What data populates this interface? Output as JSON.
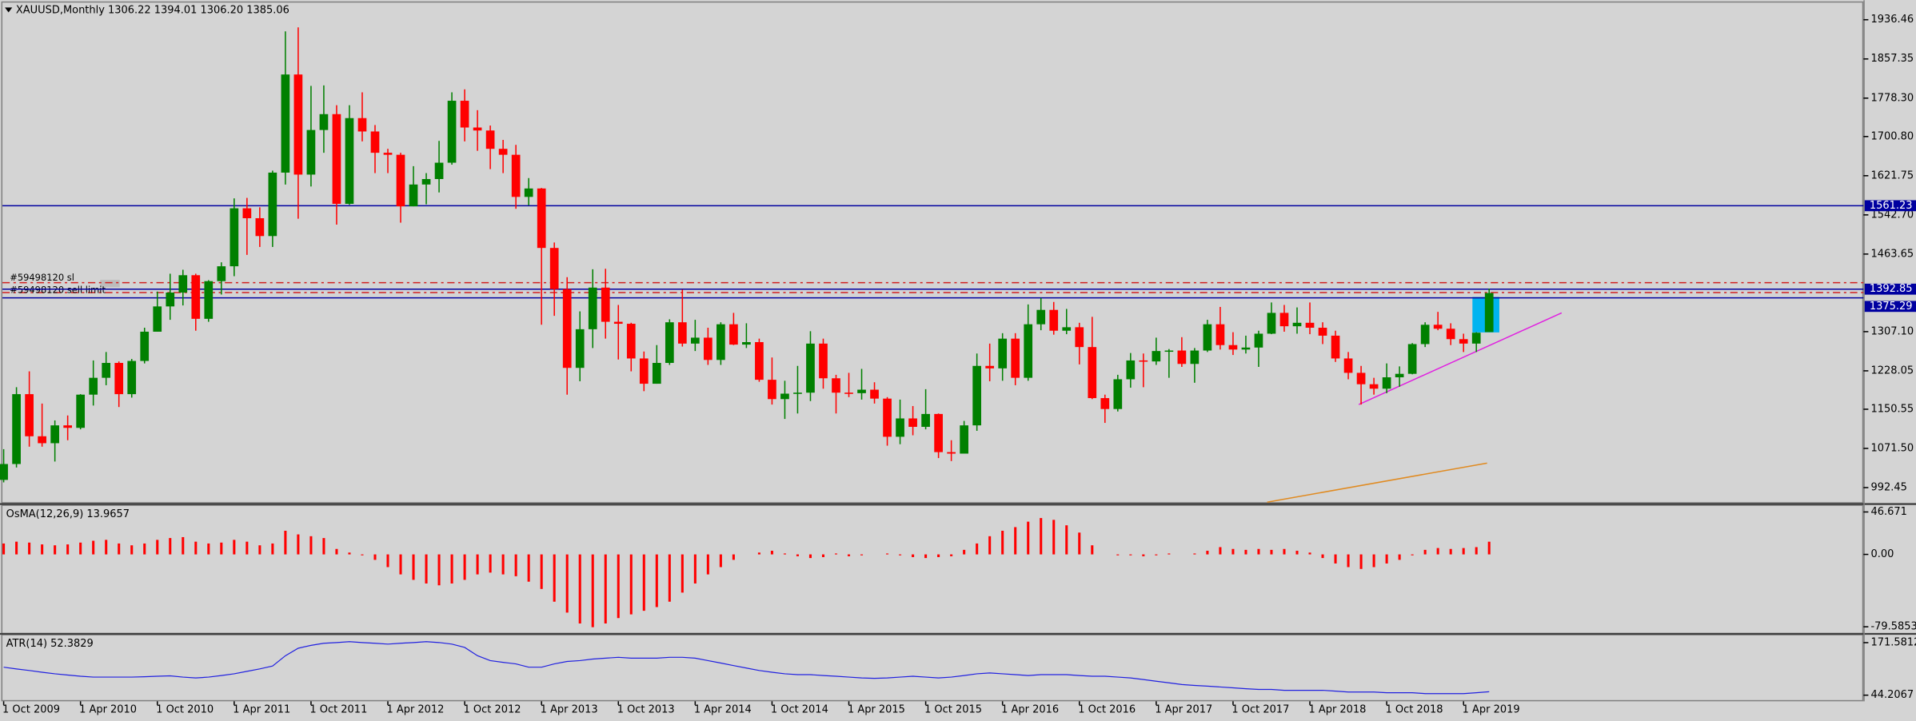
{
  "chart_data": [
    {
      "type": "candlestick",
      "title": "XAUUSD,Monthly  1306.22 1394.01 1306.20 1385.06",
      "up_color": "#008000",
      "down_color": "#ff0000",
      "ylim": [
        963,
        1971
      ],
      "yticks": [
        1936.46,
        1857.35,
        {
          "value": 1778.3,
          "label": "1778.30"
        },
        {
          "value": 1700.8,
          "label": "1700.80"
        },
        1621.75,
        {
          "value": 1542.7,
          "label": "1542.70"
        },
        1463.65,
        {
          "value": 1307.1,
          "label": "1307.10"
        },
        1228.05,
        1150.55,
        {
          "value": 1071.5,
          "label": "1071.50"
        },
        992.45
      ],
      "levels": [
        1561.23,
        1392.85,
        1375.29
      ],
      "level_color": "#0000a0",
      "orders": [
        {
          "label": "#59498120 sl",
          "value": 1406
        },
        {
          "label": "#59498120 sell limit",
          "value": 1386
        }
      ],
      "categories": [
        "1 Oct 2009",
        null,
        null,
        null,
        null,
        null,
        "1 Apr 2010",
        null,
        null,
        null,
        null,
        null,
        "1 Oct 2010",
        null,
        null,
        null,
        null,
        null,
        "1 Apr 2011",
        null,
        null,
        null,
        null,
        null,
        "1 Oct 2011",
        null,
        null,
        null,
        null,
        null,
        "1 Apr 2012",
        null,
        null,
        null,
        null,
        null,
        "1 Oct 2012",
        null,
        null,
        null,
        null,
        null,
        "1 Apr 2013",
        null,
        null,
        null,
        null,
        null,
        "1 Oct 2013",
        null,
        null,
        null,
        null,
        null,
        "1 Apr 2014",
        null,
        null,
        null,
        null,
        null,
        "1 Oct 2014",
        null,
        null,
        null,
        null,
        null,
        "1 Apr 2015",
        null,
        null,
        null,
        null,
        null,
        "1 Oct 2015",
        null,
        null,
        null,
        null,
        null,
        "1 Apr 2016",
        null,
        null,
        null,
        null,
        null,
        "1 Oct 2016",
        null,
        null,
        null,
        null,
        null,
        "1 Apr 2017",
        null,
        null,
        null,
        null,
        null,
        "1 Oct 2017",
        null,
        null,
        null,
        null,
        null,
        "1 Apr 2018",
        null,
        null,
        null,
        null,
        null,
        "1 Oct 2018",
        null,
        null,
        null,
        null,
        null,
        "1 Apr 2019",
        null,
        null
      ],
      "ohlc": [
        [
          1008,
          1070,
          1003,
          1040
        ],
        [
          1040,
          1195,
          1033,
          1181
        ],
        [
          1181,
          1227,
          1075,
          1096
        ],
        [
          1096,
          1162,
          1075,
          1082
        ],
        [
          1082,
          1128,
          1045,
          1118
        ],
        [
          1118,
          1138,
          1088,
          1113
        ],
        [
          1113,
          1181,
          1110,
          1180
        ],
        [
          1180,
          1249,
          1158,
          1214
        ],
        [
          1214,
          1266,
          1199,
          1244
        ],
        [
          1244,
          1247,
          1155,
          1181
        ],
        [
          1181,
          1252,
          1174,
          1248
        ],
        [
          1248,
          1315,
          1243,
          1307
        ],
        [
          1307,
          1388,
          1307,
          1358
        ],
        [
          1358,
          1424,
          1331,
          1386
        ],
        [
          1386,
          1432,
          1360,
          1421
        ],
        [
          1421,
          1424,
          1309,
          1333
        ],
        [
          1333,
          1411,
          1327,
          1409
        ],
        [
          1409,
          1447,
          1382,
          1439
        ],
        [
          1439,
          1576,
          1419,
          1556
        ],
        [
          1556,
          1577,
          1462,
          1536
        ],
        [
          1536,
          1558,
          1478,
          1500
        ],
        [
          1500,
          1632,
          1478,
          1628
        ],
        [
          1628,
          1913,
          1604,
          1826
        ],
        [
          1826,
          1921,
          1535,
          1624
        ],
        [
          1624,
          1803,
          1600,
          1714
        ],
        [
          1714,
          1804,
          1668,
          1746
        ],
        [
          1746,
          1764,
          1523,
          1565
        ],
        [
          1565,
          1764,
          1563,
          1738
        ],
        [
          1738,
          1790,
          1691,
          1711
        ],
        [
          1711,
          1724,
          1627,
          1668
        ],
        [
          1668,
          1676,
          1627,
          1664
        ],
        [
          1664,
          1668,
          1527,
          1560
        ],
        [
          1560,
          1641,
          1560,
          1604
        ],
        [
          1604,
          1627,
          1564,
          1615
        ],
        [
          1615,
          1692,
          1588,
          1648
        ],
        [
          1648,
          1790,
          1644,
          1773
        ],
        [
          1773,
          1796,
          1691,
          1719
        ],
        [
          1719,
          1754,
          1672,
          1713
        ],
        [
          1713,
          1723,
          1635,
          1676
        ],
        [
          1676,
          1694,
          1627,
          1664
        ],
        [
          1664,
          1684,
          1555,
          1579
        ],
        [
          1579,
          1617,
          1562,
          1596
        ],
        [
          1596,
          1597,
          1321,
          1476
        ],
        [
          1476,
          1487,
          1339,
          1393
        ],
        [
          1393,
          1417,
          1180,
          1234
        ],
        [
          1234,
          1348,
          1207,
          1312
        ],
        [
          1312,
          1433,
          1274,
          1396
        ],
        [
          1396,
          1434,
          1293,
          1327
        ],
        [
          1327,
          1361,
          1251,
          1323
        ],
        [
          1323,
          1325,
          1227,
          1253
        ],
        [
          1253,
          1267,
          1187,
          1202
        ],
        [
          1202,
          1280,
          1202,
          1244
        ],
        [
          1244,
          1332,
          1240,
          1326
        ],
        [
          1326,
          1392,
          1277,
          1283
        ],
        [
          1283,
          1331,
          1268,
          1295
        ],
        [
          1295,
          1315,
          1240,
          1250
        ],
        [
          1250,
          1326,
          1240,
          1322
        ],
        [
          1322,
          1345,
          1280,
          1281
        ],
        [
          1281,
          1324,
          1274,
          1286
        ],
        [
          1286,
          1293,
          1206,
          1210
        ],
        [
          1210,
          1255,
          1160,
          1171
        ],
        [
          1171,
          1208,
          1131,
          1182
        ],
        [
          1182,
          1238,
          1142,
          1184
        ],
        [
          1184,
          1308,
          1167,
          1283
        ],
        [
          1283,
          1293,
          1192,
          1213
        ],
        [
          1213,
          1220,
          1142,
          1184
        ],
        [
          1184,
          1224,
          1175,
          1183
        ],
        [
          1183,
          1232,
          1170,
          1190
        ],
        [
          1190,
          1205,
          1162,
          1172
        ],
        [
          1172,
          1175,
          1077,
          1095
        ],
        [
          1095,
          1170,
          1080,
          1132
        ],
        [
          1132,
          1157,
          1098,
          1115
        ],
        [
          1115,
          1191,
          1110,
          1141
        ],
        [
          1141,
          1142,
          1052,
          1064
        ],
        [
          1064,
          1088,
          1046,
          1061
        ],
        [
          1061,
          1127,
          1061,
          1118
        ],
        [
          1118,
          1263,
          1107,
          1238
        ],
        [
          1238,
          1283,
          1207,
          1233
        ],
        [
          1233,
          1304,
          1208,
          1293
        ],
        [
          1293,
          1304,
          1199,
          1214
        ],
        [
          1214,
          1362,
          1208,
          1322
        ],
        [
          1322,
          1375,
          1310,
          1351
        ],
        [
          1351,
          1367,
          1301,
          1309
        ],
        [
          1309,
          1353,
          1302,
          1316
        ],
        [
          1316,
          1325,
          1241,
          1276
        ],
        [
          1276,
          1337,
          1171,
          1173
        ],
        [
          1173,
          1180,
          1123,
          1151
        ],
        [
          1151,
          1220,
          1146,
          1211
        ],
        [
          1211,
          1264,
          1194,
          1249
        ],
        [
          1249,
          1263,
          1195,
          1247
        ],
        [
          1247,
          1295,
          1240,
          1268
        ],
        [
          1268,
          1272,
          1214,
          1269
        ],
        [
          1269,
          1296,
          1236,
          1242
        ],
        [
          1242,
          1274,
          1204,
          1269
        ],
        [
          1269,
          1331,
          1266,
          1322
        ],
        [
          1322,
          1357,
          1271,
          1280
        ],
        [
          1280,
          1306,
          1260,
          1271
        ],
        [
          1271,
          1299,
          1263,
          1275
        ],
        [
          1275,
          1309,
          1236,
          1303
        ],
        [
          1303,
          1366,
          1302,
          1345
        ],
        [
          1345,
          1361,
          1307,
          1318
        ],
        [
          1318,
          1356,
          1303,
          1325
        ],
        [
          1325,
          1366,
          1302,
          1315
        ],
        [
          1315,
          1326,
          1282,
          1299
        ],
        [
          1299,
          1309,
          1246,
          1253
        ],
        [
          1253,
          1266,
          1211,
          1224
        ],
        [
          1224,
          1238,
          1160,
          1201
        ],
        [
          1201,
          1214,
          1180,
          1192
        ],
        [
          1192,
          1243,
          1183,
          1215
        ],
        [
          1215,
          1237,
          1196,
          1222
        ],
        [
          1222,
          1284,
          1221,
          1282
        ],
        [
          1282,
          1326,
          1276,
          1321
        ],
        [
          1321,
          1347,
          1310,
          1313
        ],
        [
          1313,
          1324,
          1280,
          1292
        ],
        [
          1292,
          1303,
          1266,
          1283
        ],
        [
          1283,
          1306,
          1266,
          1305
        ],
        [
          1306.22,
          1394.01,
          1306.2,
          1385.06
        ]
      ]
    },
    {
      "type": "bar",
      "title": "OsMA(12,26,9) 13.9657",
      "color": "#ff0000",
      "ylim": [
        -86.3,
        53.39
      ],
      "yticks": [
        46.671,
        {
          "value": 0,
          "label": "0.00"
        },
        -79.5853
      ],
      "values": [
        12,
        14,
        13,
        11,
        10,
        11,
        13,
        15,
        16,
        12,
        10,
        12,
        16,
        18,
        19,
        14,
        12,
        13,
        16,
        14,
        10,
        12,
        26,
        22,
        20,
        18,
        6,
        2,
        -1,
        -6,
        -14,
        -22,
        -28,
        -32,
        -34,
        -32,
        -28,
        -22,
        -20,
        -22,
        -24,
        -30,
        -38,
        -52,
        -64,
        -76,
        -80,
        -76,
        -70,
        -66,
        -62,
        -58,
        -52,
        -42,
        -32,
        -22,
        -14,
        -6,
        0,
        2,
        4,
        1,
        -2,
        -4,
        -3,
        1,
        -2,
        -1,
        0,
        1,
        -1,
        -3,
        -4,
        -3,
        -2,
        5,
        12,
        20,
        26,
        30,
        36,
        40,
        38,
        32,
        24,
        10,
        0,
        -1,
        -1,
        -2,
        -1,
        1,
        0,
        1,
        4,
        8,
        6,
        5,
        6,
        5,
        6,
        4,
        2,
        -4,
        -10,
        -14,
        -16,
        -14,
        -10,
        -6,
        -1,
        5,
        7,
        6,
        7,
        8,
        13.9657
      ]
    },
    {
      "type": "line",
      "title": "ATR(14) 52.3829",
      "color": "#2020e0",
      "ylim": [
        32.36,
        189.35
      ],
      "yticks": [
        171.5812,
        44.2067
      ],
      "values": [
        112,
        108,
        104,
        100,
        96,
        93,
        90,
        88,
        88,
        88,
        88,
        89,
        90,
        91,
        88,
        86,
        88,
        92,
        96,
        102,
        108,
        115,
        140,
        158,
        165,
        170,
        172,
        174,
        172,
        170,
        168,
        170,
        172,
        174,
        172,
        168,
        160,
        140,
        128,
        124,
        120,
        112,
        112,
        120,
        126,
        128,
        132,
        134,
        136,
        134,
        134,
        134,
        136,
        136,
        134,
        128,
        122,
        116,
        110,
        104,
        100,
        96,
        94,
        94,
        92,
        90,
        88,
        86,
        85,
        86,
        88,
        90,
        88,
        86,
        88,
        92,
        96,
        98,
        96,
        94,
        92,
        94,
        94,
        94,
        92,
        90,
        90,
        88,
        86,
        82,
        78,
        74,
        70,
        68,
        66,
        64,
        62,
        60,
        58,
        58,
        56,
        56,
        56,
        56,
        54,
        52,
        52,
        52,
        50,
        50,
        50,
        48,
        48,
        48,
        48,
        50,
        52.3829
      ]
    }
  ]
}
